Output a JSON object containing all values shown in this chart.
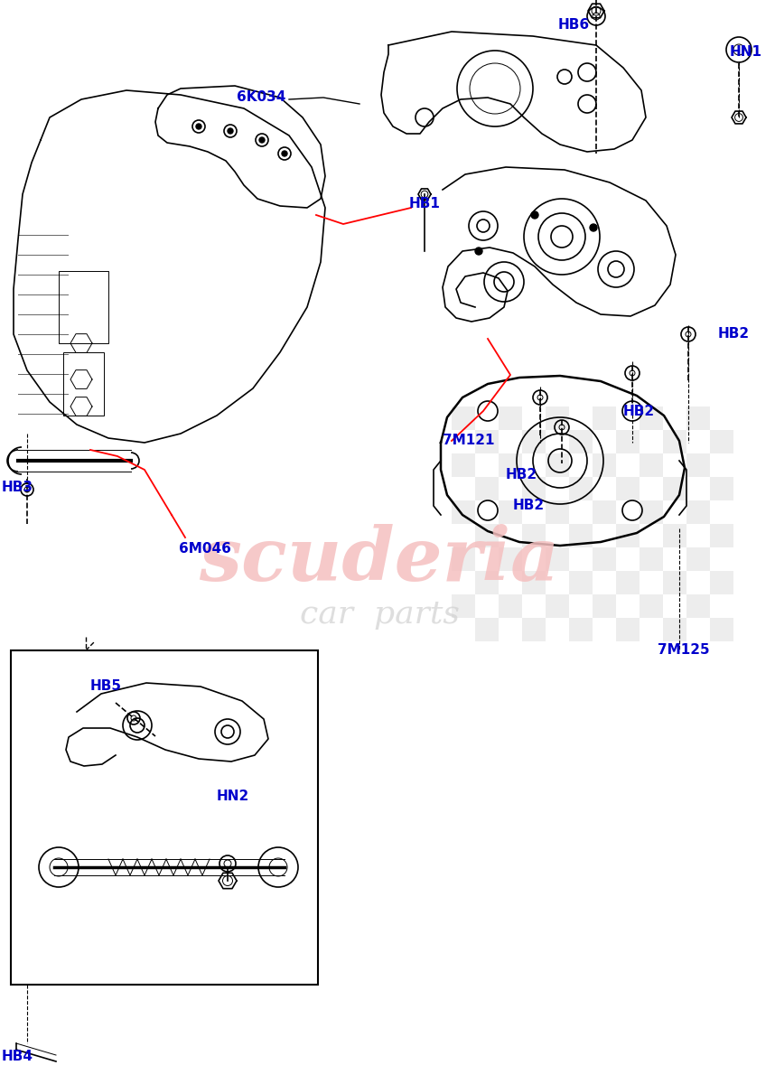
{
  "bg_color": "#ffffff",
  "watermark_text1": "scuderia",
  "watermark_text2": "car  parts",
  "watermark_color": "#f5c0c0",
  "watermark_color2": "#d0d0d0",
  "label_color": "#0000cc",
  "line_color": "#000000",
  "red_line_color": "#ff0000",
  "label_items": [
    [
      "HB1",
      453,
      225
    ],
    [
      "HB2",
      795,
      370
    ],
    [
      "HB2",
      690,
      455
    ],
    [
      "HB2",
      560,
      525
    ],
    [
      "HB2",
      568,
      560
    ],
    [
      "HB3",
      2,
      540
    ],
    [
      "HB4",
      2,
      1170
    ],
    [
      "HB5",
      100,
      760
    ],
    [
      "HB6",
      618,
      28
    ],
    [
      "HN1",
      808,
      58
    ],
    [
      "HN2",
      240,
      882
    ],
    [
      "6K034",
      262,
      108
    ],
    [
      "6M046",
      198,
      608
    ],
    [
      "7M121",
      490,
      488
    ],
    [
      "7M125",
      728,
      720
    ]
  ]
}
